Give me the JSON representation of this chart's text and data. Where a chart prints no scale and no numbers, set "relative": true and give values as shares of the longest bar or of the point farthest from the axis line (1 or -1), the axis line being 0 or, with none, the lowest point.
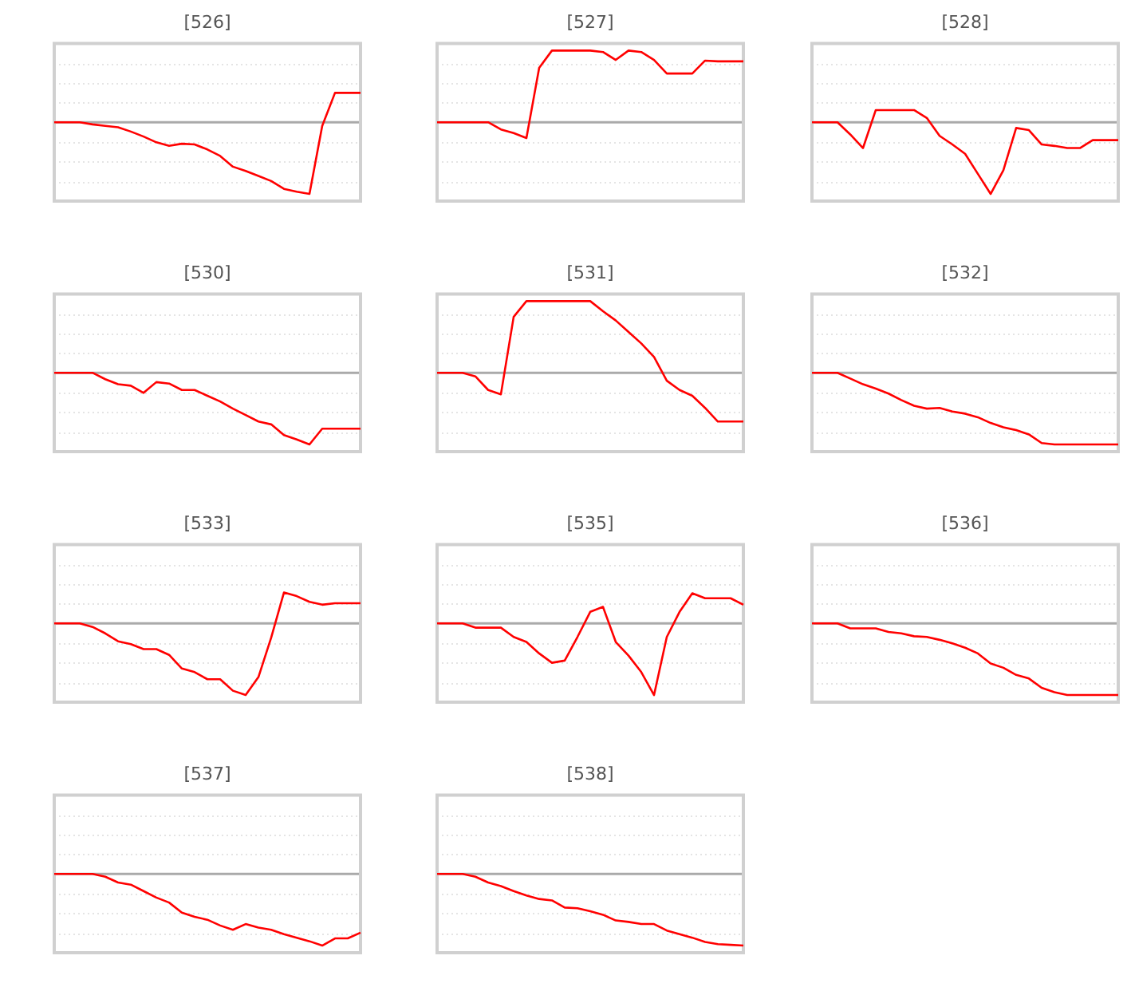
{
  "chart_data": [
    {
      "type": "line",
      "title": "[526]",
      "relative": true,
      "grid": true,
      "categories": [
        null,
        null,
        null,
        null,
        null,
        null,
        null,
        null,
        null,
        null,
        null,
        null,
        null,
        null,
        null,
        null,
        null,
        null,
        null,
        null,
        null,
        null,
        null,
        null,
        null
      ],
      "series": [
        {
          "color": "#ff0000",
          "values": [
            0,
            0,
            0,
            -0.03,
            -0.05,
            -0.07,
            -0.13,
            -0.2,
            -0.28,
            -0.33,
            -0.3,
            -0.31,
            -0.38,
            -0.47,
            -0.62,
            -0.68,
            -0.75,
            -0.82,
            -0.93,
            -0.97,
            -1,
            -0.05,
            0.41,
            0.41,
            0.41
          ]
        }
      ]
    },
    {
      "type": "line",
      "title": "[527]",
      "relative": true,
      "grid": true,
      "categories": [
        null,
        null,
        null,
        null,
        null,
        null,
        null,
        null,
        null,
        null,
        null,
        null,
        null,
        null,
        null,
        null,
        null,
        null,
        null,
        null,
        null,
        null,
        null,
        null,
        null
      ],
      "series": [
        {
          "color": "#ff0000",
          "values": [
            0,
            0,
            0,
            0,
            0,
            -0.1,
            -0.15,
            -0.22,
            0.76,
            1,
            1,
            1,
            1,
            0.98,
            0.87,
            1,
            0.98,
            0.87,
            0.68,
            0.68,
            0.68,
            0.86,
            0.85,
            0.85,
            0.85
          ]
        }
      ]
    },
    {
      "type": "line",
      "title": "[528]",
      "relative": true,
      "grid": true,
      "categories": [
        null,
        null,
        null,
        null,
        null,
        null,
        null,
        null,
        null,
        null,
        null,
        null,
        null,
        null,
        null,
        null,
        null,
        null,
        null,
        null,
        null,
        null,
        null,
        null,
        null
      ],
      "series": [
        {
          "color": "#ff0000",
          "values": [
            0,
            0,
            0,
            -0.17,
            -0.36,
            0.17,
            0.17,
            0.17,
            0.17,
            0.06,
            -0.19,
            -0.31,
            -0.44,
            -0.72,
            -1,
            -0.67,
            -0.08,
            -0.11,
            -0.31,
            -0.33,
            -0.36,
            -0.36,
            -0.25,
            -0.25,
            -0.25
          ]
        }
      ]
    },
    {
      "type": "line",
      "title": "[530]",
      "relative": true,
      "grid": true,
      "categories": [
        null,
        null,
        null,
        null,
        null,
        null,
        null,
        null,
        null,
        null,
        null,
        null,
        null,
        null,
        null,
        null,
        null,
        null,
        null,
        null,
        null,
        null,
        null,
        null,
        null
      ],
      "series": [
        {
          "color": "#ff0000",
          "values": [
            0,
            0,
            0,
            0,
            -0.09,
            -0.16,
            -0.18,
            -0.28,
            -0.13,
            -0.15,
            -0.24,
            -0.24,
            -0.32,
            -0.4,
            -0.5,
            -0.59,
            -0.68,
            -0.72,
            -0.87,
            -0.93,
            -1,
            -0.78,
            -0.78,
            -0.78,
            -0.78
          ]
        }
      ]
    },
    {
      "type": "line",
      "title": "[531]",
      "relative": true,
      "grid": true,
      "categories": [
        null,
        null,
        null,
        null,
        null,
        null,
        null,
        null,
        null,
        null,
        null,
        null,
        null,
        null,
        null,
        null,
        null,
        null,
        null,
        null,
        null,
        null,
        null,
        null,
        null
      ],
      "series": [
        {
          "color": "#ff0000",
          "values": [
            0,
            0,
            0,
            -0.05,
            -0.24,
            -0.3,
            0.78,
            1,
            1,
            1,
            1,
            1,
            1,
            0.86,
            0.73,
            0.57,
            0.41,
            0.22,
            -0.11,
            -0.24,
            -0.32,
            -0.49,
            -0.68,
            -0.68,
            -0.68
          ]
        }
      ]
    },
    {
      "type": "line",
      "title": "[532]",
      "relative": true,
      "grid": true,
      "categories": [
        null,
        null,
        null,
        null,
        null,
        null,
        null,
        null,
        null,
        null,
        null,
        null,
        null,
        null,
        null,
        null,
        null,
        null,
        null,
        null,
        null,
        null,
        null,
        null,
        null
      ],
      "series": [
        {
          "color": "#ff0000",
          "values": [
            0,
            0,
            0,
            -0.08,
            -0.16,
            -0.22,
            -0.29,
            -0.38,
            -0.46,
            -0.5,
            -0.49,
            -0.54,
            -0.57,
            -0.62,
            -0.7,
            -0.76,
            -0.8,
            -0.86,
            -0.98,
            -1,
            -1,
            -1,
            -1,
            -1,
            -1
          ]
        }
      ]
    },
    {
      "type": "line",
      "title": "[533]",
      "relative": true,
      "grid": true,
      "categories": [
        null,
        null,
        null,
        null,
        null,
        null,
        null,
        null,
        null,
        null,
        null,
        null,
        null,
        null,
        null,
        null,
        null,
        null,
        null,
        null,
        null,
        null,
        null,
        null,
        null
      ],
      "series": [
        {
          "color": "#ff0000",
          "values": [
            0,
            0,
            0,
            -0.05,
            -0.14,
            -0.25,
            -0.29,
            -0.36,
            -0.36,
            -0.44,
            -0.63,
            -0.68,
            -0.78,
            -0.78,
            -0.94,
            -1,
            -0.75,
            -0.2,
            0.43,
            0.38,
            0.3,
            0.26,
            0.28,
            0.28,
            0.28
          ]
        }
      ]
    },
    {
      "type": "line",
      "title": "[535]",
      "relative": true,
      "grid": true,
      "categories": [
        null,
        null,
        null,
        null,
        null,
        null,
        null,
        null,
        null,
        null,
        null,
        null,
        null,
        null,
        null,
        null,
        null,
        null,
        null,
        null,
        null,
        null,
        null,
        null,
        null
      ],
      "series": [
        {
          "color": "#ff0000",
          "values": [
            0,
            0,
            0,
            -0.06,
            -0.06,
            -0.06,
            -0.19,
            -0.26,
            -0.42,
            -0.55,
            -0.52,
            -0.19,
            0.16,
            0.23,
            -0.26,
            -0.45,
            -0.68,
            -1,
            -0.19,
            0.16,
            0.42,
            0.35,
            0.35,
            0.35,
            0.26
          ]
        }
      ]
    },
    {
      "type": "line",
      "title": "[536]",
      "relative": true,
      "grid": true,
      "categories": [
        null,
        null,
        null,
        null,
        null,
        null,
        null,
        null,
        null,
        null,
        null,
        null,
        null,
        null,
        null,
        null,
        null,
        null,
        null,
        null,
        null,
        null,
        null,
        null,
        null
      ],
      "series": [
        {
          "color": "#ff0000",
          "values": [
            0,
            0,
            0,
            -0.07,
            -0.07,
            -0.07,
            -0.12,
            -0.14,
            -0.18,
            -0.19,
            -0.23,
            -0.28,
            -0.34,
            -0.42,
            -0.56,
            -0.62,
            -0.72,
            -0.77,
            -0.9,
            -0.96,
            -1,
            -1,
            -1,
            -1,
            -1
          ]
        }
      ]
    },
    {
      "type": "line",
      "title": "[537]",
      "relative": true,
      "grid": true,
      "categories": [
        null,
        null,
        null,
        null,
        null,
        null,
        null,
        null,
        null,
        null,
        null,
        null,
        null,
        null,
        null,
        null,
        null,
        null,
        null,
        null,
        null,
        null,
        null,
        null,
        null
      ],
      "series": [
        {
          "color": "#ff0000",
          "values": [
            0,
            0,
            0,
            0,
            -0.04,
            -0.12,
            -0.15,
            -0.24,
            -0.33,
            -0.4,
            -0.54,
            -0.6,
            -0.64,
            -0.72,
            -0.78,
            -0.7,
            -0.75,
            -0.78,
            -0.84,
            -0.89,
            -0.94,
            -1,
            -0.9,
            -0.9,
            -0.82
          ]
        }
      ]
    },
    {
      "type": "line",
      "title": "[538]",
      "relative": true,
      "grid": true,
      "categories": [
        null,
        null,
        null,
        null,
        null,
        null,
        null,
        null,
        null,
        null,
        null,
        null,
        null,
        null,
        null,
        null,
        null,
        null,
        null,
        null,
        null,
        null,
        null,
        null,
        null
      ],
      "series": [
        {
          "color": "#ff0000",
          "values": [
            0,
            0,
            0,
            -0.04,
            -0.12,
            -0.17,
            -0.24,
            -0.3,
            -0.35,
            -0.37,
            -0.47,
            -0.48,
            -0.52,
            -0.57,
            -0.65,
            -0.67,
            -0.7,
            -0.7,
            -0.79,
            -0.84,
            -0.89,
            -0.95,
            -0.98,
            -0.99,
            -1
          ]
        }
      ]
    }
  ]
}
